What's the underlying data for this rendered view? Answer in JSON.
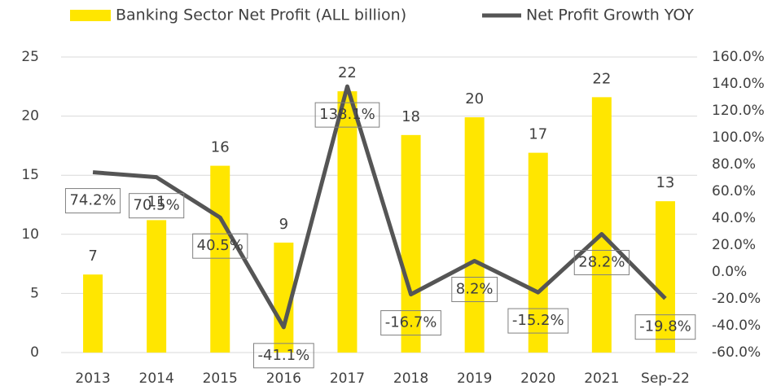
{
  "chart_data": {
    "type": "bar_line",
    "categories": [
      "2013",
      "2014",
      "2015",
      "2016",
      "2017",
      "2018",
      "2019",
      "2020",
      "2021",
      "Sep-22"
    ],
    "series": [
      {
        "name": "Banking Sector Net Profit (ALL billion)",
        "type": "bar",
        "color": "#ffe600",
        "values": [
          6.6,
          11.2,
          15.8,
          9.3,
          22.1,
          18.4,
          19.9,
          16.9,
          21.6,
          12.8
        ],
        "value_labels": [
          "7",
          "11",
          "16",
          "9",
          "22",
          "18",
          "20",
          "17",
          "22",
          "13"
        ]
      },
      {
        "name": "Net Profit Growth YOY",
        "type": "line",
        "color": "#555555",
        "axis": "y2",
        "values": [
          74.2,
          70.5,
          40.5,
          -41.1,
          138.1,
          -16.7,
          8.2,
          -15.2,
          28.2,
          -19.8
        ],
        "value_labels": [
          "74.2%",
          "70.5%",
          "40.5%",
          "-41.1%",
          "138.1%",
          "-16.7%",
          "8.2%",
          "-15.2%",
          "28.2%",
          "-19.8%"
        ]
      }
    ],
    "ylim": [
      0,
      25
    ],
    "yticks": [
      0,
      5,
      10,
      15,
      20,
      25
    ],
    "y2lim": [
      -60,
      160
    ],
    "y2ticks": [
      {
        "value": -60,
        "label": "-60.0%"
      },
      {
        "value": -40,
        "label": "-40.0%"
      },
      {
        "value": -20,
        "label": "-20.0%"
      },
      {
        "value": 0,
        "label": "0.0%"
      },
      {
        "value": 20,
        "label": "20.0%"
      },
      {
        "value": 40,
        "label": "40.0%"
      },
      {
        "value": 60,
        "label": "60.0%"
      },
      {
        "value": 80,
        "label": "80.0%"
      },
      {
        "value": 100,
        "label": "100.0%"
      },
      {
        "value": 120,
        "label": "120.0%"
      },
      {
        "value": 140,
        "label": "140.0%"
      },
      {
        "value": 160,
        "label": "160.0%"
      }
    ],
    "grid": true,
    "legend": "top"
  }
}
